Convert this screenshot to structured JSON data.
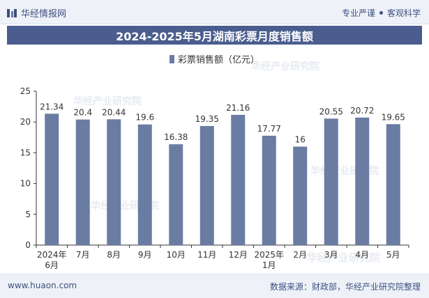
{
  "header": {
    "brand": "华经情报网",
    "tagline_a": "专业严谨",
    "tagline_b": "客观科学"
  },
  "chart_data": {
    "type": "bar",
    "title": "2024-2025年5月湖南彩票月度销售额",
    "categories": [
      "2024年\n6月",
      "7月",
      "8月",
      "9月",
      "10月",
      "11月",
      "12月",
      "2025年\n1月",
      "2月",
      "3月",
      "4月",
      "5月"
    ],
    "series": [
      {
        "name": "彩票销售额（亿元）",
        "values": [
          21.34,
          20.4,
          20.44,
          19.6,
          16.38,
          19.35,
          21.16,
          17.77,
          16,
          20.55,
          20.72,
          19.65
        ]
      }
    ],
    "value_labels": [
      "21.34",
      "20.4",
      "20.44",
      "19.6",
      "16.38",
      "19.35",
      "21.16",
      "17.77",
      "16",
      "20.55",
      "20.72",
      "19.65"
    ],
    "ylim": [
      0,
      25
    ],
    "yticks": [
      "0",
      "5",
      "10",
      "15",
      "20",
      "25"
    ],
    "grid": false,
    "legend": "top-center",
    "bar_color": "#6a7ca2"
  },
  "watermark": "华经产业研究院",
  "footer": {
    "url": "www.huaon.com",
    "source": "数据来源：财政部，华经产业研究院整理"
  }
}
